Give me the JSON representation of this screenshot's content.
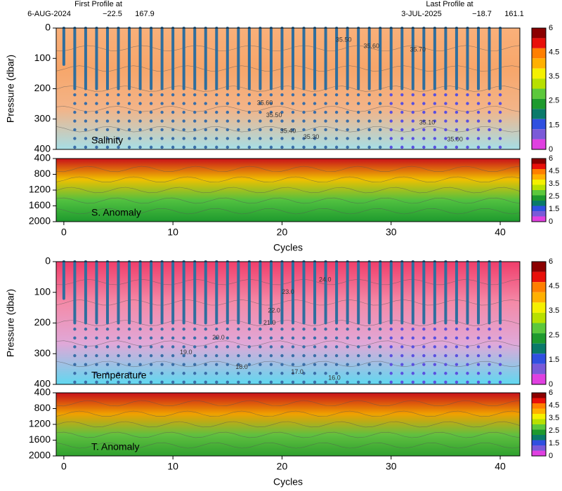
{
  "header": {
    "first_label": "First Profile at",
    "first_date": "6-AUG-2024",
    "first_lat": "−22.5",
    "first_lon": "167.9",
    "last_label": "Last Profile at",
    "last_date": "3-JUL-2025",
    "last_lat": "−18.7",
    "last_lon": "161.1"
  },
  "chart_data": [
    {
      "type": "section",
      "label": "Salinity",
      "ylabel": "Pressure (dbar)",
      "xlim": [
        -0.7,
        41.8
      ],
      "ylim": [
        0,
        400
      ],
      "yreverse": true,
      "yticks": [
        0,
        100,
        200,
        300,
        400
      ],
      "field_colors": [
        "#f9b07a",
        "#f7a66a",
        "#f3b488",
        "#a6dee6"
      ],
      "profiles": [
        0,
        1,
        2,
        3,
        4,
        5,
        6,
        7,
        8,
        9,
        10,
        11,
        12,
        13,
        14,
        15,
        16,
        17,
        18,
        19,
        20,
        21,
        22,
        23,
        24,
        25,
        26,
        27,
        28,
        29,
        30,
        31,
        32,
        33,
        34,
        35,
        36,
        37,
        38,
        39,
        40
      ],
      "annotations": [
        "35.50",
        "35.60",
        "35.70",
        "35.60",
        "35.50",
        "35.40",
        "35.30",
        "35.10",
        "35.00"
      ],
      "colorbar": {
        "ticks": [
          6,
          4.5,
          3.5,
          2.5,
          1.5,
          0
        ],
        "colors": [
          "#8b0000",
          "#e8100a",
          "#ff7f00",
          "#ffb000",
          "#f5f000",
          "#b8e000",
          "#5cc83c",
          "#1e9a2e",
          "#0a7a6a",
          "#3050e0",
          "#7a5ad8",
          "#e040e0"
        ]
      }
    },
    {
      "type": "anomaly",
      "label": "S. Anomaly",
      "xlabel": "Cycles",
      "xlim": [
        -0.7,
        41.8
      ],
      "xticks": [
        0,
        10,
        20,
        30,
        40
      ],
      "ylim": [
        400,
        2000
      ],
      "yreverse": true,
      "yticks": [
        400,
        800,
        1200,
        1600,
        2000
      ],
      "field_colors": [
        "#c8101a",
        "#f0c000",
        "#50c040",
        "#1e9a2e"
      ],
      "colorbar": {
        "ticks": [
          6,
          4.5,
          3.5,
          2.5,
          1.5,
          0
        ],
        "colors": [
          "#8b0000",
          "#e8100a",
          "#ff7f00",
          "#ffb000",
          "#f5f000",
          "#b8e000",
          "#5cc83c",
          "#1e9a2e",
          "#0a7a6a",
          "#3050e0",
          "#7a5ad8",
          "#e040e0"
        ]
      }
    },
    {
      "type": "section",
      "label": "Temperature",
      "ylabel": "Pressure (dbar)",
      "xlim": [
        -0.7,
        41.8
      ],
      "ylim": [
        0,
        400
      ],
      "yreverse": true,
      "yticks": [
        0,
        100,
        200,
        300,
        400
      ],
      "field_colors": [
        "#f03d6a",
        "#f48aa8",
        "#e0a8d8",
        "#60d8f0"
      ],
      "profiles": [
        0,
        1,
        2,
        3,
        4,
        5,
        6,
        7,
        8,
        9,
        10,
        11,
        12,
        13,
        14,
        15,
        16,
        17,
        18,
        19,
        20,
        21,
        22,
        23,
        24,
        25,
        26,
        27,
        28,
        29,
        30,
        31,
        32,
        33,
        34,
        35,
        36,
        37,
        38,
        39,
        40
      ],
      "annotations": [
        "24.0",
        "23.0",
        "22.0",
        "21.0",
        "20.0",
        "19.0",
        "18.0",
        "17.0",
        "16.0"
      ],
      "colorbar": {
        "ticks": [
          6,
          4.5,
          3.5,
          2.5,
          1.5,
          0
        ],
        "colors": [
          "#8b0000",
          "#e8100a",
          "#ff7f00",
          "#ffb000",
          "#f5f000",
          "#b8e000",
          "#5cc83c",
          "#1e9a2e",
          "#0a7a6a",
          "#3050e0",
          "#7a5ad8",
          "#e040e0"
        ]
      }
    },
    {
      "type": "anomaly",
      "label": "T. Anomaly",
      "xlabel": "Cycles",
      "xlim": [
        -0.7,
        41.8
      ],
      "xticks": [
        0,
        10,
        20,
        30,
        40
      ],
      "ylim": [
        400,
        2000
      ],
      "yreverse": true,
      "yticks": [
        400,
        800,
        1200,
        1600,
        2000
      ],
      "field_colors": [
        "#c8101a",
        "#f0a000",
        "#60c040",
        "#2ea02e"
      ],
      "colorbar": {
        "ticks": [
          6,
          4.5,
          3.5,
          2.5,
          1.5,
          0
        ],
        "colors": [
          "#8b0000",
          "#e8100a",
          "#ff7f00",
          "#ffb000",
          "#f5f000",
          "#b8e000",
          "#5cc83c",
          "#1e9a2e",
          "#0a7a6a",
          "#3050e0",
          "#7a5ad8",
          "#e040e0"
        ]
      }
    }
  ]
}
